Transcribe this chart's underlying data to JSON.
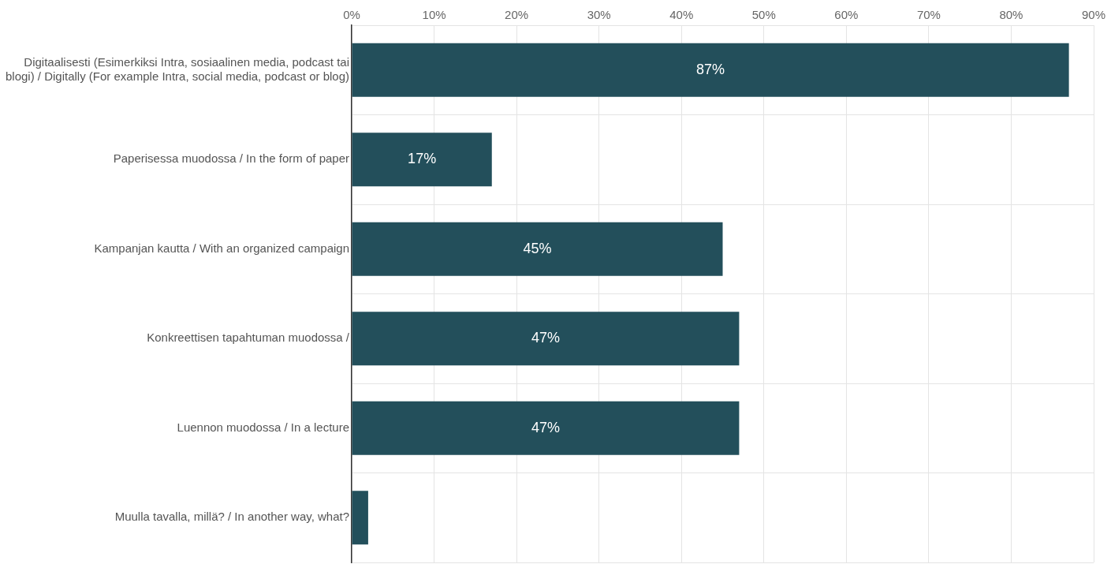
{
  "chart_data": {
    "type": "bar",
    "orientation": "horizontal",
    "categories": [
      "Digitaalisesti (Esimerkiksi Intra, sosiaalinen media, podcast tai blogi) / Digitally (For example Intra, social media, podcast or blog)",
      "Paperisessa muodossa / In the form of paper",
      "Kampanjan kautta / With an organized campaign",
      "Konkreettisen tapahtuman muodossa /",
      "Luennon muodossa / In a lecture",
      "Muulla tavalla, millä? / In another way, what?"
    ],
    "values": [
      87,
      17,
      45,
      47,
      47,
      2
    ],
    "value_labels": [
      "87%",
      "17%",
      "45%",
      "47%",
      "47%",
      null
    ],
    "color": "#234f5b",
    "xlim": [
      0,
      90
    ],
    "xticks": [
      {
        "value": 0,
        "label": "0%"
      },
      {
        "value": 10,
        "label": "10%"
      },
      {
        "value": 20,
        "label": "20%"
      },
      {
        "value": 30,
        "label": "30%"
      },
      {
        "value": 40,
        "label": "40%"
      },
      {
        "value": 50,
        "label": "50%"
      },
      {
        "value": 60,
        "label": "60%"
      },
      {
        "value": 70,
        "label": "70%"
      },
      {
        "value": 80,
        "label": "80%"
      },
      {
        "value": 90,
        "label": "90%"
      }
    ],
    "grid": true
  }
}
